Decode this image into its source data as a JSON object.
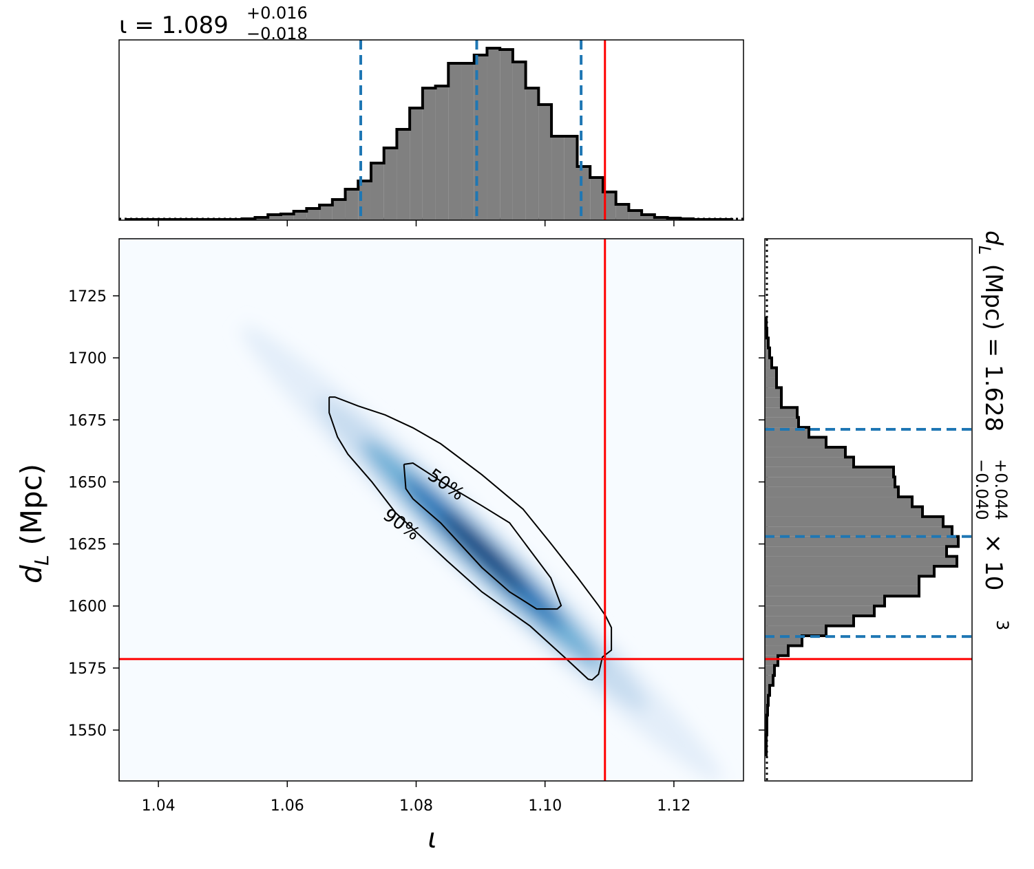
{
  "chart_data": [
    {
      "type": "histogram",
      "orientation": "vertical",
      "title": {
        "text": "ι = 1.089",
        "sup": "+0.016",
        "sub": "−0.018"
      },
      "bins": [
        1.035,
        1.037,
        1.039,
        1.041,
        1.043,
        1.045,
        1.047,
        1.049,
        1.051,
        1.053,
        1.055,
        1.057,
        1.059,
        1.061,
        1.063,
        1.065,
        1.067,
        1.069,
        1.071,
        1.073,
        1.075,
        1.077,
        1.079,
        1.081,
        1.083,
        1.085,
        1.087,
        1.089,
        1.091,
        1.093,
        1.095,
        1.097,
        1.099,
        1.101,
        1.103,
        1.105,
        1.107,
        1.109,
        1.111,
        1.113,
        1.115,
        1.117,
        1.119,
        1.121,
        1.123,
        1.125,
        1.127,
        1.129
      ],
      "values": [
        1,
        1,
        1,
        1,
        1,
        1,
        1,
        1,
        1,
        2,
        4,
        8,
        9,
        13,
        17,
        22,
        30,
        45,
        57,
        83,
        105,
        132,
        163,
        192,
        195,
        228,
        228,
        240,
        250,
        248,
        230,
        192,
        168,
        122,
        122,
        78,
        62,
        41,
        23,
        14,
        8,
        4,
        3,
        2,
        1,
        1,
        1
      ],
      "xlim": [
        1.0339,
        1.1308
      ],
      "ylim": [
        0,
        262
      ],
      "color": "#808080",
      "edge_color": "#000000",
      "quantiles": [
        1.0714,
        1.0894,
        1.1056
      ],
      "quantile_color": "#1f77b4",
      "truth": 1.1093,
      "truth_color": "#ff0000"
    },
    {
      "type": "hist2d",
      "xlabel": "ι",
      "ylabel": {
        "symbol": "d",
        "sub": "L",
        "unit": " (Mpc)"
      },
      "xlim": [
        1.0339,
        1.1308
      ],
      "ylim": [
        1529.5,
        1748
      ],
      "xticks": [
        1.04,
        1.06,
        1.08,
        {
          "value": 1.1,
          "label": "1.10"
        },
        1.12
      ],
      "yticks": [
        1550,
        1575,
        1600,
        1625,
        1650,
        1675,
        1700,
        1725
      ],
      "truths": {
        "x": 1.1093,
        "y": 1578.6
      },
      "truth_color": "#ff0000",
      "contours": [
        {
          "label": "50%",
          "x": [
            1.0781,
            1.0795,
            1.0848,
            1.0902,
            1.0945,
            1.0977,
            1.1009,
            1.1025,
            1.1019,
            1.0987,
            1.0945,
            1.0902,
            1.0838,
            1.0795,
            1.0784,
            1.0781
          ],
          "y": [
            1657.1,
            1657.6,
            1648.7,
            1640.4,
            1633.5,
            1622.4,
            1611.3,
            1600.2,
            1598.8,
            1598.8,
            1605.7,
            1615.5,
            1633.5,
            1643.2,
            1647.3,
            1657.1
          ]
        },
        {
          "label": "90%",
          "x": [
            1.0665,
            1.0674,
            1.071,
            1.0752,
            1.0795,
            1.0838,
            1.0902,
            1.0966,
            1.1009,
            1.1051,
            1.1083,
            1.1094,
            1.1103,
            1.1103,
            1.1089,
            1.1083,
            1.1073,
            1.1067,
            1.103,
            1.0977,
            1.0902,
            1.0848,
            1.0768,
            1.0731,
            1.0694,
            1.0678,
            1.0665,
            1.0665
          ],
          "y": [
            1684.2,
            1684.2,
            1680.6,
            1677.0,
            1671.8,
            1665.4,
            1652.9,
            1639.0,
            1625.2,
            1611.3,
            1600.2,
            1596.0,
            1591.3,
            1582.2,
            1579.4,
            1572.5,
            1570.2,
            1570.5,
            1579.4,
            1591.9,
            1605.7,
            1618.2,
            1637.6,
            1650.1,
            1661.2,
            1668.1,
            1677.9,
            1684.2
          ]
        }
      ]
    },
    {
      "type": "histogram",
      "orientation": "horizontal",
      "title": {
        "symbol": "d",
        "sub": "L",
        "text": " (Mpc) = 1.628",
        "sup": "+0.044",
        "sub2": "−0.040",
        "scale": " × 10",
        "scale_exp": "3"
      },
      "bins": [
        1540,
        1544,
        1548,
        1552,
        1556,
        1560,
        1564,
        1568,
        1572,
        1576,
        1580,
        1584,
        1588,
        1592,
        1596,
        1600,
        1604,
        1608,
        1612,
        1616,
        1620,
        1624,
        1628,
        1632,
        1636,
        1640,
        1644,
        1648,
        1652,
        1656,
        1660,
        1664,
        1668,
        1672,
        1676,
        1680,
        1684,
        1688,
        1692,
        1696,
        1700,
        1704,
        1708,
        1712,
        1716
      ],
      "values": [
        2,
        2,
        3,
        3,
        4,
        5,
        7,
        12,
        14,
        19,
        34,
        54,
        89,
        129,
        159,
        174,
        224,
        224,
        246,
        279,
        264,
        281,
        272,
        259,
        229,
        214,
        194,
        189,
        187,
        129,
        117,
        89,
        64,
        49,
        47,
        24,
        24,
        17,
        17,
        10,
        7,
        5,
        3,
        2
      ],
      "xlim": [
        0,
        301
      ],
      "ylim": [
        1529.5,
        1748
      ],
      "color": "#808080",
      "edge_color": "#000000",
      "quantiles": [
        1587.7,
        1628.0,
        1671.2
      ],
      "quantile_color": "#1f77b4",
      "truth": 1578.6,
      "truth_color": "#ff0000"
    }
  ]
}
